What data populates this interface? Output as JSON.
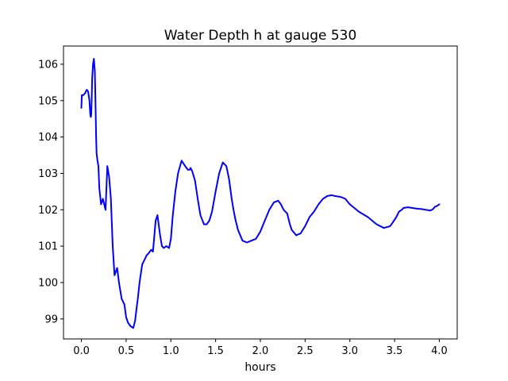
{
  "chart_data": {
    "type": "line",
    "title": "Water Depth h at gauge 530",
    "xlabel": "hours",
    "ylabel": "",
    "xlim": [
      -0.2,
      4.2
    ],
    "ylim": [
      98.45,
      106.5
    ],
    "xticks": [
      0.0,
      0.5,
      1.0,
      1.5,
      2.0,
      2.5,
      3.0,
      3.5,
      4.0
    ],
    "xtick_labels": [
      "0.0",
      "0.5",
      "1.0",
      "1.5",
      "2.0",
      "2.5",
      "3.0",
      "3.5",
      "4.0"
    ],
    "yticks": [
      99,
      100,
      101,
      102,
      103,
      104,
      105,
      106
    ],
    "ytick_labels": [
      "99",
      "100",
      "101",
      "102",
      "103",
      "104",
      "105",
      "106"
    ],
    "grid": false,
    "series": [
      {
        "color": "#0000ff",
        "x": [
          0.0,
          0.005,
          0.02,
          0.04,
          0.06,
          0.075,
          0.09,
          0.1,
          0.105,
          0.11,
          0.115,
          0.12,
          0.13,
          0.14,
          0.15,
          0.16,
          0.165,
          0.17,
          0.18,
          0.19,
          0.2,
          0.22,
          0.24,
          0.25,
          0.27,
          0.29,
          0.31,
          0.33,
          0.35,
          0.37,
          0.4,
          0.42,
          0.45,
          0.48,
          0.5,
          0.52,
          0.55,
          0.58,
          0.6,
          0.62,
          0.63,
          0.65,
          0.68,
          0.7,
          0.71,
          0.73,
          0.75,
          0.78,
          0.8,
          0.83,
          0.85,
          0.88,
          0.9,
          0.92,
          0.95,
          0.98,
          1.0,
          1.02,
          1.05,
          1.08,
          1.12,
          1.16,
          1.19,
          1.21,
          1.22,
          1.24,
          1.27,
          1.3,
          1.33,
          1.37,
          1.4,
          1.43,
          1.46,
          1.5,
          1.54,
          1.58,
          1.62,
          1.65,
          1.68,
          1.7,
          1.72,
          1.75,
          1.8,
          1.85,
          1.9,
          1.95,
          2.0,
          2.05,
          2.1,
          2.15,
          2.2,
          2.23,
          2.26,
          2.3,
          2.33,
          2.35,
          2.4,
          2.45,
          2.5,
          2.55,
          2.6,
          2.65,
          2.7,
          2.75,
          2.8,
          2.83,
          2.9,
          2.95,
          3.0,
          3.05,
          3.1,
          3.2,
          3.3,
          3.38,
          3.45,
          3.48,
          3.52,
          3.55,
          3.58,
          3.6,
          3.65,
          3.7,
          3.75,
          3.8,
          3.85,
          3.9,
          3.93,
          3.95,
          3.97,
          4.0
        ],
        "y": [
          104.8,
          105.15,
          105.15,
          105.2,
          105.3,
          105.25,
          105.0,
          104.6,
          104.55,
          104.6,
          105.0,
          105.6,
          106.0,
          106.15,
          105.8,
          104.6,
          104.0,
          103.55,
          103.35,
          103.2,
          102.6,
          102.15,
          102.3,
          102.2,
          102.0,
          103.2,
          102.9,
          102.3,
          101.0,
          100.2,
          100.4,
          100.0,
          99.55,
          99.4,
          99.05,
          98.9,
          98.8,
          98.75,
          98.95,
          99.35,
          99.55,
          100.0,
          100.5,
          100.6,
          100.65,
          100.75,
          100.8,
          100.9,
          100.85,
          101.7,
          101.85,
          101.3,
          101.0,
          100.95,
          101.0,
          100.95,
          101.2,
          101.8,
          102.5,
          103.0,
          103.35,
          103.2,
          103.1,
          103.1,
          103.15,
          103.05,
          102.8,
          102.3,
          101.85,
          101.6,
          101.6,
          101.7,
          101.95,
          102.5,
          103.0,
          103.3,
          103.2,
          102.85,
          102.3,
          102.0,
          101.75,
          101.45,
          101.15,
          101.1,
          101.15,
          101.2,
          101.4,
          101.7,
          102.0,
          102.2,
          102.25,
          102.15,
          102.0,
          101.9,
          101.6,
          101.45,
          101.3,
          101.35,
          101.55,
          101.8,
          101.95,
          102.15,
          102.3,
          102.38,
          102.4,
          102.38,
          102.35,
          102.3,
          102.15,
          102.05,
          101.95,
          101.8,
          101.6,
          101.5,
          101.55,
          101.65,
          101.8,
          101.95,
          102.0,
          102.05,
          102.07,
          102.05,
          102.03,
          102.02,
          102.0,
          101.98,
          102.02,
          102.08,
          102.1,
          102.15
        ]
      }
    ]
  }
}
